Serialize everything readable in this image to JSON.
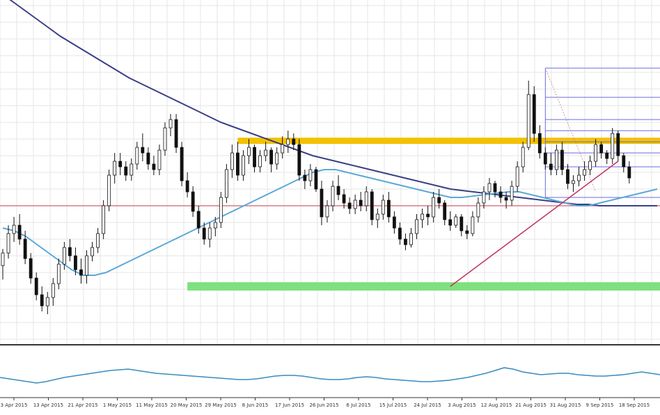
{
  "chart_data": {
    "type": "candlestick",
    "x_tick_labels": [
      "3 Apr 2015",
      "13 Apr 2015",
      "21 Apr 2015",
      "1 May 2015",
      "11 May 2015",
      "20 May 2015",
      "29 May 2015",
      "8 Jun 2015",
      "17 Jun 2015",
      "26 Jun 2015",
      "6 Jul 2015",
      "15 Jul 2015",
      "24 Jul 2015",
      "3 Aug 2015",
      "12 Aug 2015",
      "21 Aug 2015",
      "31 Aug 2015",
      "9 Sep 2015",
      "18 Sep 2015"
    ],
    "candles": [
      {
        "o": 43,
        "h": 55,
        "l": 33,
        "c": 52
      },
      {
        "o": 52,
        "h": 72,
        "l": 48,
        "c": 66
      },
      {
        "o": 66,
        "h": 78,
        "l": 60,
        "c": 72
      },
      {
        "o": 72,
        "h": 80,
        "l": 58,
        "c": 62
      },
      {
        "o": 62,
        "h": 68,
        "l": 44,
        "c": 48
      },
      {
        "o": 48,
        "h": 52,
        "l": 30,
        "c": 34
      },
      {
        "o": 34,
        "h": 38,
        "l": 18,
        "c": 22
      },
      {
        "o": 22,
        "h": 28,
        "l": 10,
        "c": 14
      },
      {
        "o": 14,
        "h": 24,
        "l": 8,
        "c": 20
      },
      {
        "o": 20,
        "h": 34,
        "l": 14,
        "c": 30
      },
      {
        "o": 30,
        "h": 48,
        "l": 26,
        "c": 44
      },
      {
        "o": 44,
        "h": 60,
        "l": 40,
        "c": 56
      },
      {
        "o": 56,
        "h": 62,
        "l": 46,
        "c": 50
      },
      {
        "o": 50,
        "h": 56,
        "l": 36,
        "c": 40
      },
      {
        "o": 40,
        "h": 48,
        "l": 30,
        "c": 36
      },
      {
        "o": 36,
        "h": 54,
        "l": 30,
        "c": 50
      },
      {
        "o": 50,
        "h": 60,
        "l": 46,
        "c": 56
      },
      {
        "o": 56,
        "h": 70,
        "l": 52,
        "c": 66
      },
      {
        "o": 66,
        "h": 90,
        "l": 62,
        "c": 86
      },
      {
        "o": 86,
        "h": 112,
        "l": 82,
        "c": 108
      },
      {
        "o": 108,
        "h": 124,
        "l": 102,
        "c": 118
      },
      {
        "o": 118,
        "h": 124,
        "l": 108,
        "c": 114
      },
      {
        "o": 114,
        "h": 118,
        "l": 104,
        "c": 108
      },
      {
        "o": 108,
        "h": 120,
        "l": 104,
        "c": 116
      },
      {
        "o": 116,
        "h": 132,
        "l": 112,
        "c": 128
      },
      {
        "o": 128,
        "h": 138,
        "l": 118,
        "c": 124
      },
      {
        "o": 124,
        "h": 128,
        "l": 112,
        "c": 116
      },
      {
        "o": 116,
        "h": 122,
        "l": 108,
        "c": 112
      },
      {
        "o": 112,
        "h": 130,
        "l": 108,
        "c": 126
      },
      {
        "o": 126,
        "h": 146,
        "l": 122,
        "c": 142
      },
      {
        "o": 142,
        "h": 152,
        "l": 136,
        "c": 148
      },
      {
        "o": 148,
        "h": 152,
        "l": 124,
        "c": 128
      },
      {
        "o": 128,
        "h": 132,
        "l": 100,
        "c": 104
      },
      {
        "o": 104,
        "h": 110,
        "l": 92,
        "c": 96
      },
      {
        "o": 96,
        "h": 100,
        "l": 78,
        "c": 82
      },
      {
        "o": 82,
        "h": 86,
        "l": 66,
        "c": 70
      },
      {
        "o": 70,
        "h": 74,
        "l": 58,
        "c": 62
      },
      {
        "o": 62,
        "h": 74,
        "l": 56,
        "c": 70
      },
      {
        "o": 70,
        "h": 78,
        "l": 64,
        "c": 74
      },
      {
        "o": 74,
        "h": 96,
        "l": 70,
        "c": 92
      },
      {
        "o": 92,
        "h": 116,
        "l": 88,
        "c": 112
      },
      {
        "o": 112,
        "h": 130,
        "l": 106,
        "c": 124
      },
      {
        "o": 124,
        "h": 132,
        "l": 104,
        "c": 108
      },
      {
        "o": 108,
        "h": 126,
        "l": 104,
        "c": 122
      },
      {
        "o": 122,
        "h": 134,
        "l": 116,
        "c": 128
      },
      {
        "o": 128,
        "h": 130,
        "l": 110,
        "c": 114
      },
      {
        "o": 114,
        "h": 126,
        "l": 110,
        "c": 122
      },
      {
        "o": 122,
        "h": 132,
        "l": 118,
        "c": 126
      },
      {
        "o": 126,
        "h": 128,
        "l": 110,
        "c": 116
      },
      {
        "o": 116,
        "h": 128,
        "l": 112,
        "c": 124
      },
      {
        "o": 124,
        "h": 136,
        "l": 120,
        "c": 130
      },
      {
        "o": 130,
        "h": 140,
        "l": 124,
        "c": 134
      },
      {
        "o": 134,
        "h": 138,
        "l": 126,
        "c": 130
      },
      {
        "o": 130,
        "h": 134,
        "l": 104,
        "c": 108
      },
      {
        "o": 108,
        "h": 112,
        "l": 98,
        "c": 104
      },
      {
        "o": 104,
        "h": 116,
        "l": 100,
        "c": 112
      },
      {
        "o": 112,
        "h": 114,
        "l": 96,
        "c": 98
      },
      {
        "o": 98,
        "h": 104,
        "l": 72,
        "c": 78
      },
      {
        "o": 78,
        "h": 90,
        "l": 74,
        "c": 86
      },
      {
        "o": 86,
        "h": 104,
        "l": 82,
        "c": 100
      },
      {
        "o": 100,
        "h": 108,
        "l": 90,
        "c": 94
      },
      {
        "o": 94,
        "h": 98,
        "l": 84,
        "c": 88
      },
      {
        "o": 88,
        "h": 92,
        "l": 80,
        "c": 84
      },
      {
        "o": 84,
        "h": 94,
        "l": 80,
        "c": 90
      },
      {
        "o": 90,
        "h": 96,
        "l": 82,
        "c": 86
      },
      {
        "o": 86,
        "h": 100,
        "l": 82,
        "c": 96
      },
      {
        "o": 96,
        "h": 98,
        "l": 72,
        "c": 76
      },
      {
        "o": 76,
        "h": 84,
        "l": 70,
        "c": 80
      },
      {
        "o": 80,
        "h": 94,
        "l": 76,
        "c": 90
      },
      {
        "o": 90,
        "h": 96,
        "l": 74,
        "c": 78
      },
      {
        "o": 78,
        "h": 82,
        "l": 66,
        "c": 70
      },
      {
        "o": 70,
        "h": 74,
        "l": 58,
        "c": 62
      },
      {
        "o": 62,
        "h": 66,
        "l": 54,
        "c": 58
      },
      {
        "o": 58,
        "h": 70,
        "l": 56,
        "c": 66
      },
      {
        "o": 66,
        "h": 80,
        "l": 62,
        "c": 76
      },
      {
        "o": 76,
        "h": 84,
        "l": 70,
        "c": 80
      },
      {
        "o": 80,
        "h": 86,
        "l": 72,
        "c": 78
      },
      {
        "o": 78,
        "h": 96,
        "l": 74,
        "c": 92
      },
      {
        "o": 92,
        "h": 98,
        "l": 84,
        "c": 88
      },
      {
        "o": 88,
        "h": 90,
        "l": 72,
        "c": 76
      },
      {
        "o": 76,
        "h": 82,
        "l": 68,
        "c": 72
      },
      {
        "o": 72,
        "h": 80,
        "l": 70,
        "c": 78
      },
      {
        "o": 78,
        "h": 80,
        "l": 64,
        "c": 68
      },
      {
        "o": 68,
        "h": 72,
        "l": 62,
        "c": 66
      },
      {
        "o": 66,
        "h": 82,
        "l": 64,
        "c": 78
      },
      {
        "o": 78,
        "h": 92,
        "l": 74,
        "c": 88
      },
      {
        "o": 88,
        "h": 100,
        "l": 84,
        "c": 96
      },
      {
        "o": 96,
        "h": 106,
        "l": 90,
        "c": 102
      },
      {
        "o": 102,
        "h": 104,
        "l": 92,
        "c": 96
      },
      {
        "o": 96,
        "h": 100,
        "l": 88,
        "c": 92
      },
      {
        "o": 92,
        "h": 96,
        "l": 84,
        "c": 90
      },
      {
        "o": 90,
        "h": 104,
        "l": 86,
        "c": 100
      },
      {
        "o": 100,
        "h": 118,
        "l": 96,
        "c": 114
      },
      {
        "o": 114,
        "h": 132,
        "l": 110,
        "c": 128
      },
      {
        "o": 128,
        "h": 176,
        "l": 126,
        "c": 166
      },
      {
        "o": 166,
        "h": 172,
        "l": 132,
        "c": 138
      },
      {
        "o": 138,
        "h": 144,
        "l": 120,
        "c": 124
      },
      {
        "o": 124,
        "h": 128,
        "l": 112,
        "c": 116
      },
      {
        "o": 116,
        "h": 124,
        "l": 108,
        "c": 112
      },
      {
        "o": 112,
        "h": 130,
        "l": 108,
        "c": 126
      },
      {
        "o": 126,
        "h": 132,
        "l": 108,
        "c": 112
      },
      {
        "o": 112,
        "h": 116,
        "l": 98,
        "c": 102
      },
      {
        "o": 102,
        "h": 108,
        "l": 96,
        "c": 104
      },
      {
        "o": 104,
        "h": 114,
        "l": 100,
        "c": 108
      },
      {
        "o": 108,
        "h": 118,
        "l": 104,
        "c": 112
      },
      {
        "o": 112,
        "h": 122,
        "l": 108,
        "c": 118
      },
      {
        "o": 118,
        "h": 134,
        "l": 114,
        "c": 130
      },
      {
        "o": 130,
        "h": 132,
        "l": 120,
        "c": 124
      },
      {
        "o": 124,
        "h": 126,
        "l": 116,
        "c": 120
      },
      {
        "o": 120,
        "h": 142,
        "l": 116,
        "c": 138
      },
      {
        "o": 138,
        "h": 140,
        "l": 118,
        "c": 122
      },
      {
        "o": 122,
        "h": 124,
        "l": 110,
        "c": 114
      },
      {
        "o": 114,
        "h": 118,
        "l": 102,
        "c": 106
      }
    ],
    "moving_averages": [
      {
        "name": "",
        "color": "#3a3f86",
        "values": [
          238,
          232,
          226,
          220,
          214,
          208,
          203,
          198,
          193,
          188,
          183,
          178,
          174,
          170,
          166,
          162,
          158,
          154,
          150,
          146,
          143,
          140,
          137,
          134,
          131,
          128,
          125,
          122,
          120,
          118,
          116,
          114,
          112,
          110,
          108,
          106,
          104,
          102,
          100,
          98,
          97,
          96,
          95,
          94,
          93,
          92,
          91,
          90,
          89,
          88,
          87,
          87,
          86,
          86,
          86,
          86,
          86,
          86
        ]
      },
      {
        "name": "",
        "color": "#5aa8d8",
        "values": [
          70,
          68,
          64,
          58,
          52,
          46,
          40,
          36,
          36,
          38,
          42,
          46,
          50,
          54,
          58,
          62,
          66,
          70,
          74,
          78,
          82,
          86,
          90,
          94,
          98,
          102,
          106,
          110,
          112,
          112,
          110,
          108,
          106,
          104,
          102,
          100,
          98,
          96,
          94,
          92,
          92,
          93,
          94,
          95,
          96,
          96,
          94,
          92,
          90,
          88,
          86,
          86,
          88,
          90,
          92,
          94,
          96,
          98
        ]
      }
    ],
    "horizontal_levels": [
      {
        "value": 133,
        "color": "#f2c200"
      },
      {
        "value": 28,
        "color": "#7fe07f"
      },
      {
        "value": 86,
        "color": "#d06070"
      }
    ],
    "fib_levels": [
      185,
      164,
      148,
      140,
      132,
      124,
      114,
      92
    ],
    "trendline": {
      "from": [
        80,
        28
      ],
      "to": [
        110,
        118
      ],
      "color": "#c0305a"
    },
    "oscillator": {
      "values": [
        52,
        50,
        48,
        46,
        44,
        46,
        49,
        52,
        54,
        56,
        58,
        60,
        62,
        63,
        64,
        62,
        60,
        58,
        57,
        56,
        55,
        54,
        53,
        52,
        51,
        50,
        49,
        49,
        50,
        52,
        54,
        55,
        55,
        54,
        52,
        50,
        49,
        49,
        50,
        52,
        53,
        52,
        50,
        49,
        48,
        47,
        46,
        46,
        47,
        48,
        50,
        52,
        55,
        58,
        62,
        66,
        64,
        60,
        58,
        56,
        57,
        58,
        58,
        56,
        55,
        54,
        54,
        55,
        56,
        58,
        60,
        58,
        56
      ],
      "color": "#3a8ac0",
      "ylim": [
        30,
        90
      ]
    },
    "xlim": [
      0,
      117
    ],
    "ylim": [
      0,
      230
    ]
  }
}
